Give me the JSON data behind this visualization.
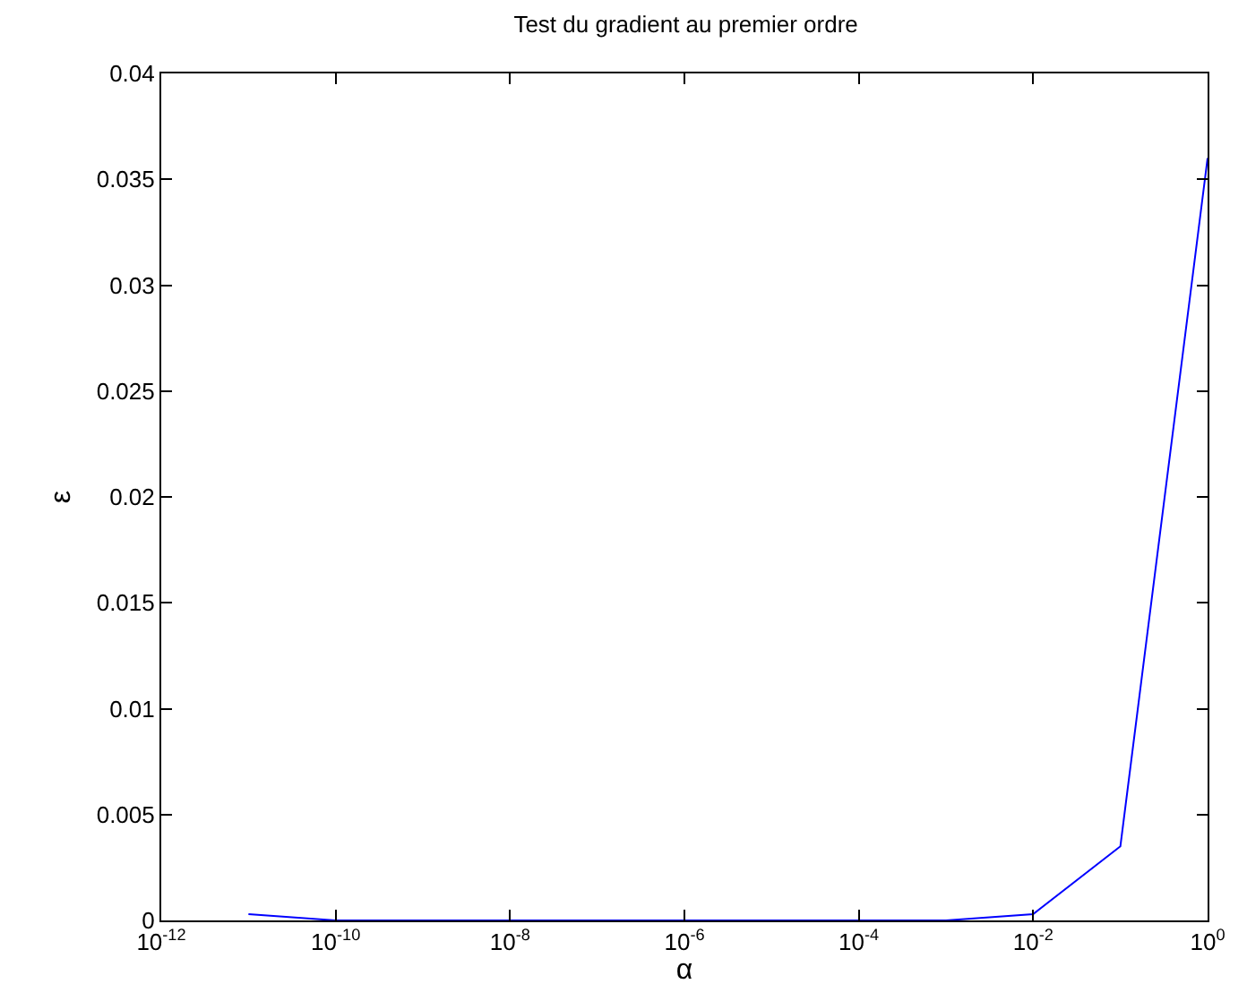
{
  "chart_data": {
    "type": "line",
    "title": "Test du gradient au premier ordre",
    "xlabel": "α",
    "ylabel": "ε",
    "x": [
      1e-11,
      1e-10,
      1e-09,
      1e-08,
      1e-07,
      1e-06,
      1e-05,
      0.0001,
      0.001,
      0.01,
      0.1,
      1
    ],
    "series": [
      {
        "color": "#0000ff",
        "values": [
          0.0003,
          0,
          0,
          0,
          0,
          0,
          0,
          0,
          0,
          0.0003,
          0.0035,
          0.036
        ]
      }
    ],
    "log": "x",
    "xlim": [
      1e-12,
      1
    ],
    "xticks": [
      {
        "value": 1e-12,
        "label": "10$^{-12}$"
      },
      {
        "value": 1e-10,
        "label": "10$^{-10}$"
      },
      {
        "value": 1e-08,
        "label": "10$^{-8}$"
      },
      {
        "value": 1e-06,
        "label": "10$^{-6}$"
      },
      {
        "value": 0.0001,
        "label": "10$^{-4}$"
      },
      {
        "value": 0.01,
        "label": "10$^{-2}$"
      },
      {
        "value": 1,
        "label": "10$^{0}$"
      }
    ],
    "ylim": [
      0,
      0.04
    ],
    "yticks": [
      0,
      0.005,
      0.01,
      0.015,
      0.02,
      0.025,
      0.03,
      0.035,
      0.04
    ],
    "grid": false,
    "marker": "none",
    "line_style": "solid"
  }
}
